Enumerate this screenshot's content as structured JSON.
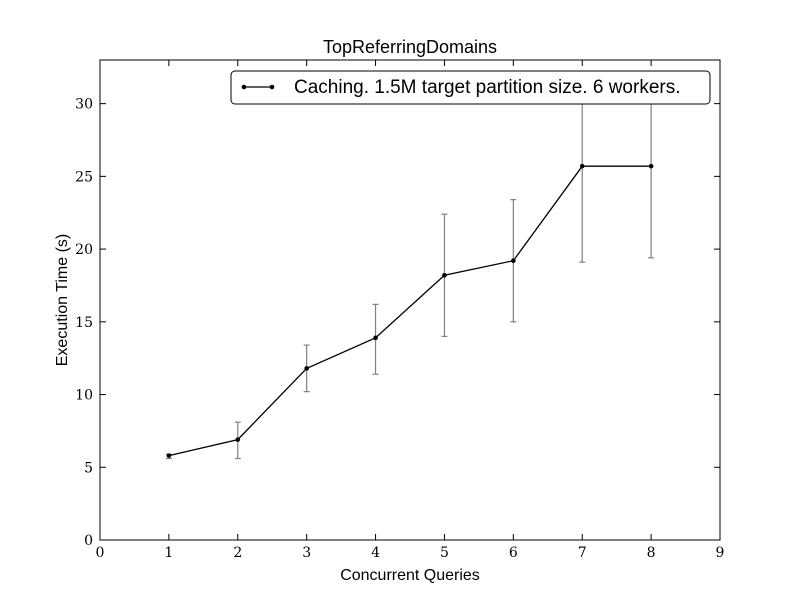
{
  "chart_data": {
    "type": "line",
    "title": "TopReferringDomains",
    "xlabel": "Concurrent Queries",
    "ylabel": "Execution Time (s)",
    "xlim": [
      0,
      9
    ],
    "ylim": [
      0,
      33
    ],
    "xticks": [
      0,
      1,
      2,
      3,
      4,
      5,
      6,
      7,
      8,
      9
    ],
    "yticks": [
      0,
      5,
      10,
      15,
      20,
      25,
      30
    ],
    "grid": false,
    "legend_position": "top-right",
    "series": [
      {
        "name": "Caching. 1.5M target partition size. 6 workers.",
        "color": "#000000",
        "error_bar_color": "#808080",
        "x": [
          1,
          2,
          3,
          4,
          5,
          6,
          7,
          8
        ],
        "y": [
          5.8,
          6.9,
          11.8,
          13.9,
          18.2,
          19.2,
          25.7,
          25.7
        ],
        "error_low": [
          5.6,
          5.6,
          10.2,
          11.4,
          14.0,
          15.0,
          19.1,
          19.4
        ],
        "error_high": [
          5.9,
          8.1,
          13.4,
          16.2,
          22.4,
          23.4,
          32.0,
          31.8
        ]
      }
    ]
  }
}
